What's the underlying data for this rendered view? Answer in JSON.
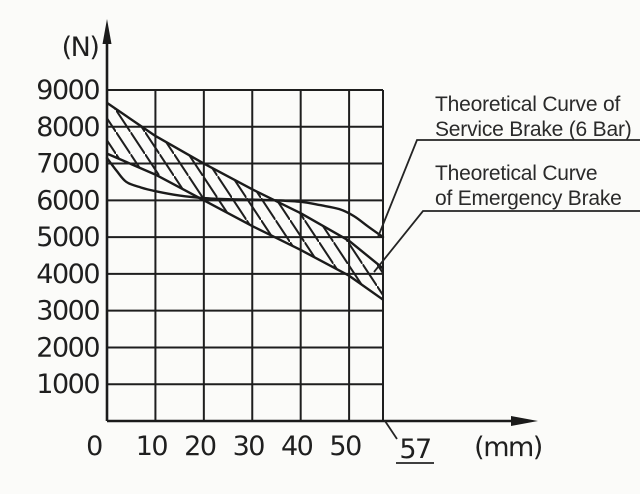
{
  "chart_data": {
    "type": "line",
    "title": "",
    "xlabel": "(mm)",
    "ylabel": "(N)",
    "xlim": [
      0,
      57
    ],
    "ylim": [
      0,
      9000
    ],
    "xticks": [
      0,
      10,
      20,
      30,
      40,
      50
    ],
    "yticks": [
      1000,
      2000,
      3000,
      4000,
      5000,
      6000,
      7000,
      8000,
      9000
    ],
    "x_max_label": "57",
    "grid": "on",
    "series": [
      {
        "name": "Theoretical Curve of Service Brake (6 Bar)",
        "type": "curve",
        "x": [
          0,
          2,
          4,
          7,
          10,
          15,
          20,
          25,
          30,
          35,
          40,
          44,
          48,
          51,
          54,
          57
        ],
        "y": [
          7150,
          6800,
          6500,
          6350,
          6250,
          6130,
          6060,
          6030,
          6020,
          6000,
          5960,
          5870,
          5760,
          5570,
          5280,
          5000
        ]
      },
      {
        "name": "Theoretical Curve of Emergency Brake",
        "type": "band",
        "hatch": "diagonal",
        "x": [
          0,
          10,
          20,
          30,
          40,
          50,
          57
        ],
        "y_upper": [
          8650,
          7750,
          7000,
          6300,
          5650,
          4900,
          4150
        ],
        "y_lower": [
          7270,
          6700,
          6000,
          5300,
          4650,
          3950,
          3300
        ]
      }
    ],
    "annotations": [
      {
        "lines": [
          "Theoretical Curve of",
          "Service Brake (6 Bar)"
        ]
      },
      {
        "lines": [
          "Theoretical Curve",
          "of Emergency Brake"
        ]
      }
    ]
  },
  "colors": {
    "ink": "#1b1b1b",
    "background": "#fbfbf9"
  }
}
